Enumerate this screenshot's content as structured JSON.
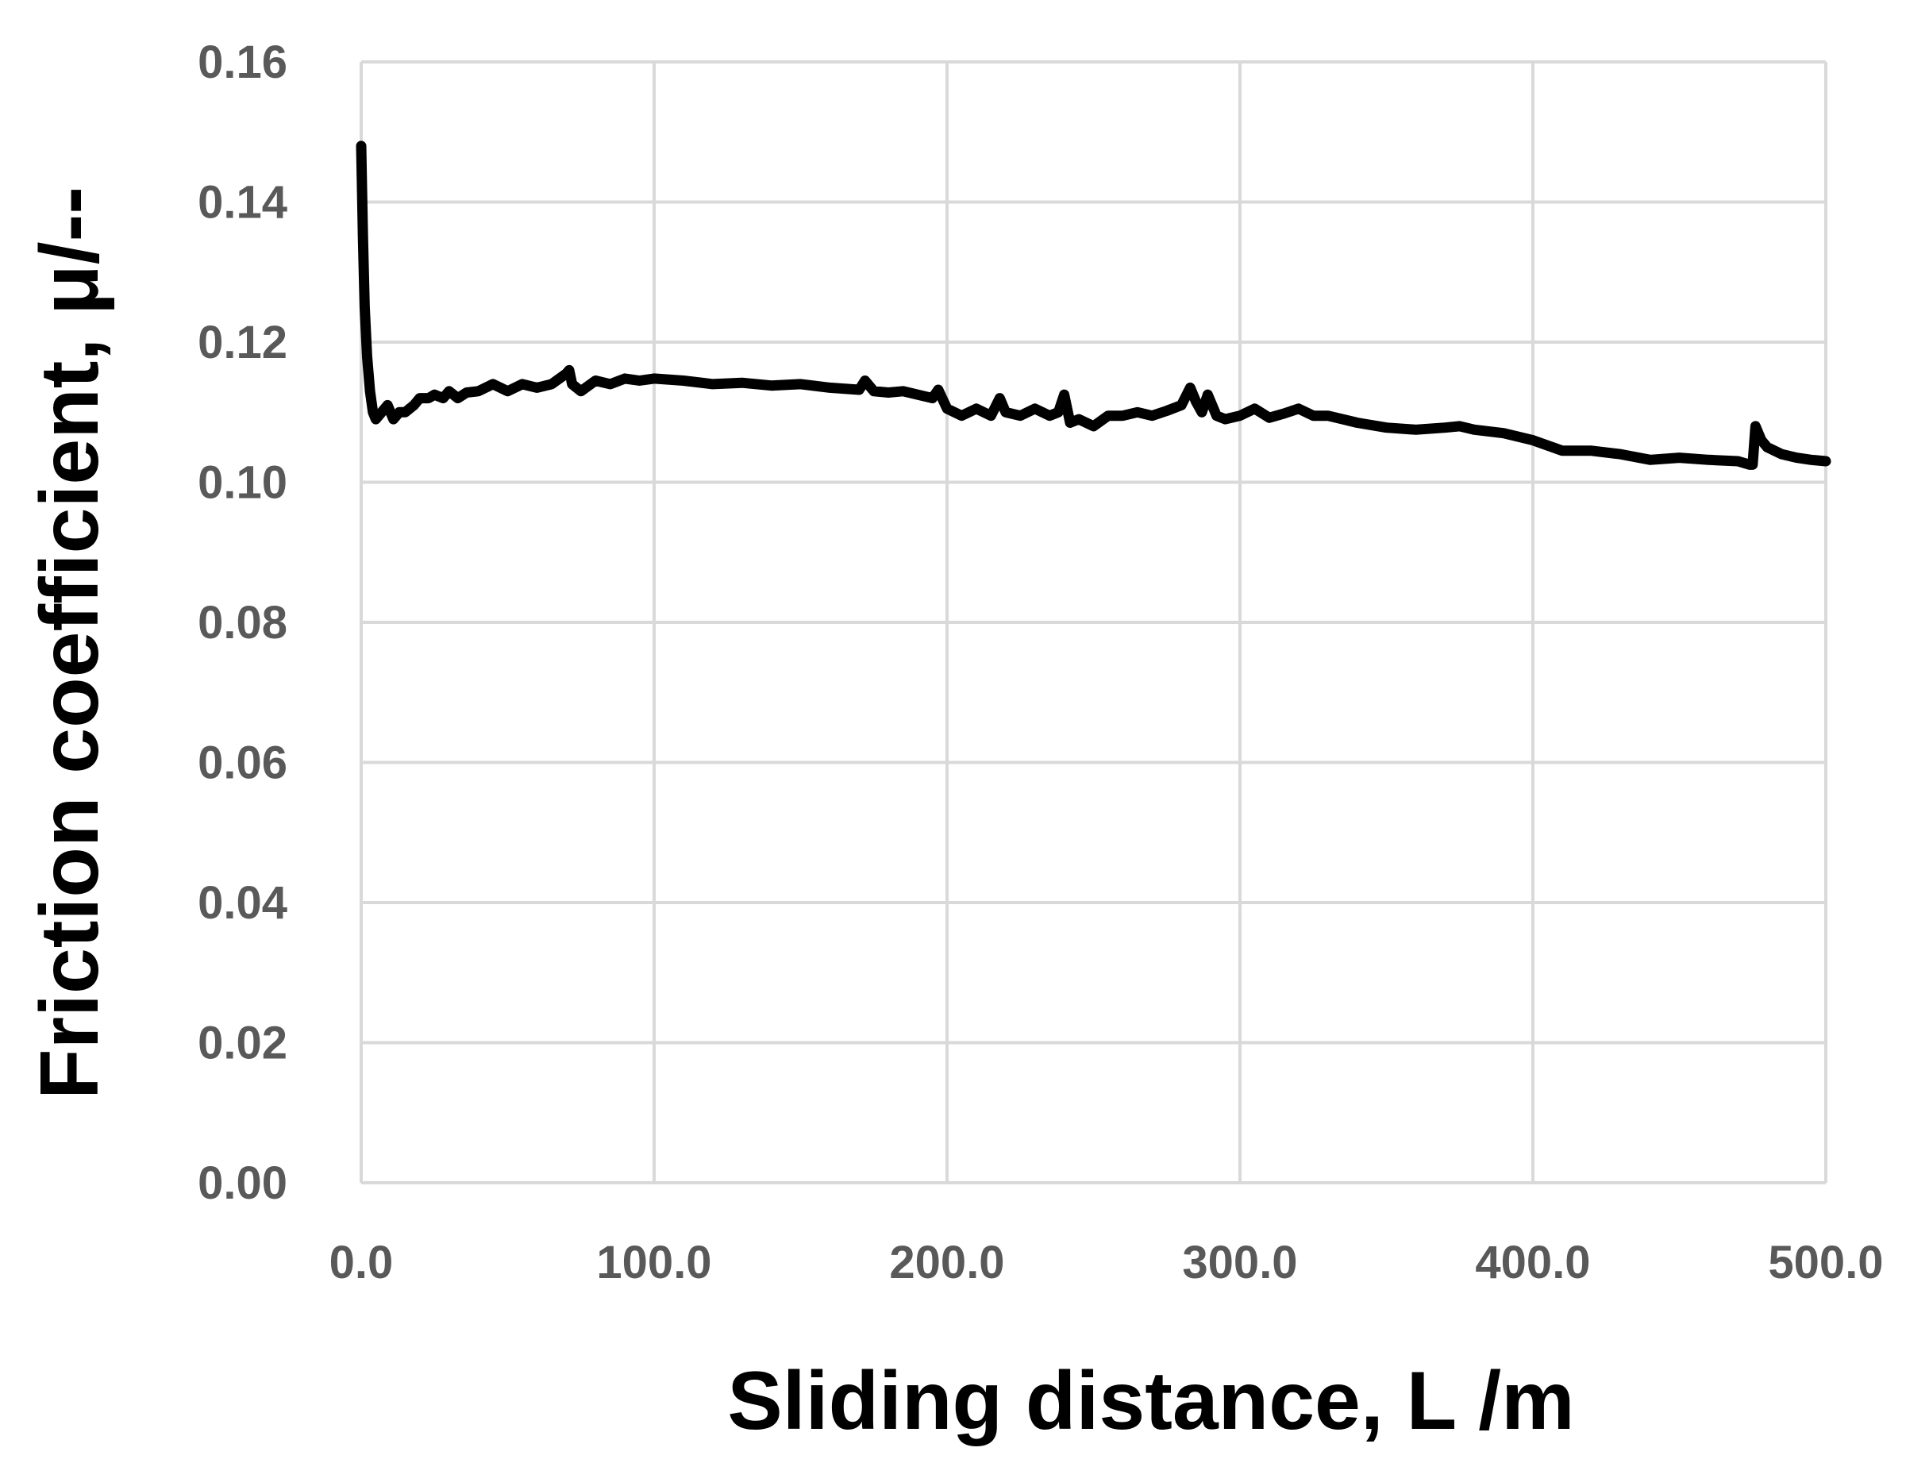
{
  "chart_data": {
    "type": "line",
    "title": "",
    "xlabel": "Sliding distance, L /m",
    "ylabel": "Friction coefficient, μ/--",
    "xlim": [
      0,
      500
    ],
    "ylim": [
      0,
      0.16
    ],
    "x_ticks": [
      "0.0",
      "100.0",
      "200.0",
      "300.0",
      "400.0",
      "500.0"
    ],
    "y_ticks": [
      "0.00",
      "0.02",
      "0.04",
      "0.06",
      "0.08",
      "0.10",
      "0.12",
      "0.14",
      "0.16"
    ],
    "grid": true,
    "legend": "none",
    "series": [
      {
        "color": "#000000",
        "x": [
          0,
          0.6,
          1.2,
          2,
          3,
          4,
          5,
          7,
          9,
          11,
          13,
          15,
          18,
          20,
          23,
          25,
          28,
          30,
          33,
          36,
          40,
          45,
          50,
          55,
          60,
          65,
          70,
          71,
          72,
          75,
          80,
          85,
          90,
          95,
          100,
          110,
          120,
          130,
          140,
          150,
          160,
          170,
          172,
          175,
          180,
          185,
          190,
          195,
          197,
          200,
          205,
          210,
          215,
          218,
          220,
          225,
          230,
          235,
          238,
          240,
          242,
          245,
          250,
          255,
          260,
          265,
          270,
          275,
          280,
          283,
          285,
          287,
          289,
          292,
          295,
          300,
          305,
          310,
          315,
          320,
          325,
          330,
          335,
          340,
          350,
          360,
          370,
          375,
          380,
          390,
          400,
          410,
          420,
          430,
          440,
          450,
          460,
          470,
          474,
          475,
          476,
          478,
          480,
          485,
          490,
          495,
          500
        ],
        "y": [
          0.148,
          0.135,
          0.125,
          0.118,
          0.113,
          0.11,
          0.109,
          0.11,
          0.111,
          0.109,
          0.11,
          0.11,
          0.111,
          0.112,
          0.112,
          0.1125,
          0.112,
          0.113,
          0.112,
          0.1128,
          0.113,
          0.114,
          0.113,
          0.114,
          0.1135,
          0.114,
          0.1155,
          0.116,
          0.114,
          0.113,
          0.1145,
          0.114,
          0.1148,
          0.1145,
          0.1148,
          0.1145,
          0.114,
          0.1142,
          0.1138,
          0.114,
          0.1135,
          0.1132,
          0.1145,
          0.113,
          0.1128,
          0.113,
          0.1125,
          0.112,
          0.1132,
          0.1105,
          0.1095,
          0.1105,
          0.1095,
          0.112,
          0.11,
          0.1095,
          0.1105,
          0.1095,
          0.11,
          0.1125,
          0.1085,
          0.109,
          0.108,
          0.1095,
          0.1095,
          0.11,
          0.1095,
          0.1102,
          0.111,
          0.1135,
          0.1115,
          0.11,
          0.1125,
          0.1095,
          0.109,
          0.1095,
          0.1105,
          0.1092,
          0.1098,
          0.1105,
          0.1095,
          0.1095,
          0.109,
          0.1085,
          0.1078,
          0.1075,
          0.1078,
          0.108,
          0.1075,
          0.107,
          0.106,
          0.1045,
          0.1045,
          0.104,
          0.1032,
          0.1035,
          0.1032,
          0.103,
          0.1025,
          0.1025,
          0.108,
          0.106,
          0.105,
          0.104,
          0.1035,
          0.1032,
          0.103
        ]
      }
    ]
  }
}
